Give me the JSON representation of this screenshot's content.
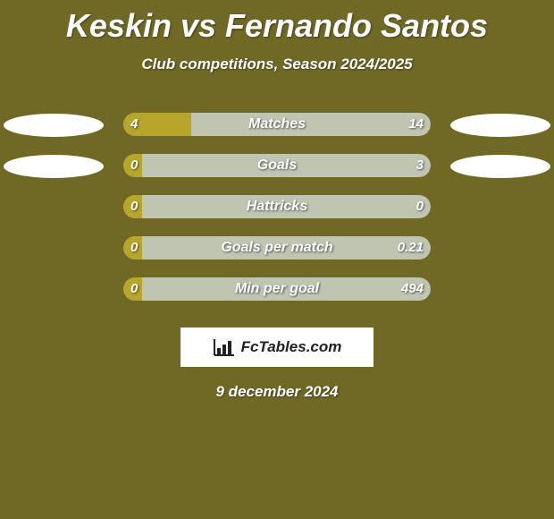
{
  "title": "Keskin vs Fernando Santos",
  "subtitle": "Club competitions, Season 2024/2025",
  "logo_text": "FcTables.com",
  "date": "9 december 2024",
  "background_color": "#706926",
  "text_color": "#ffffff",
  "ellipse_color": "#ffffff",
  "bar_track_width": 344,
  "bar_track_height": 26,
  "bar_radius": 14,
  "rows": [
    {
      "label": "Matches",
      "left_value": "4",
      "right_value": "14",
      "left_num": 4,
      "right_num": 14,
      "left_color": "#b8a62c",
      "right_color": "#c0c5b2",
      "left_pct": 22.2,
      "right_pct": 77.8,
      "show_left_ellipse": true,
      "show_right_ellipse": true
    },
    {
      "label": "Goals",
      "left_value": "0",
      "right_value": "3",
      "left_num": 0,
      "right_num": 3,
      "left_color": "#b8a62c",
      "right_color": "#c0c5b2",
      "left_pct": 6,
      "right_pct": 94,
      "show_left_ellipse": true,
      "show_right_ellipse": true
    },
    {
      "label": "Hattricks",
      "left_value": "0",
      "right_value": "0",
      "left_num": 0,
      "right_num": 0,
      "left_color": "#b8a62c",
      "right_color": "#c0c5b2",
      "left_pct": 6,
      "right_pct": 6,
      "neutral_fill": "#c0c5b2",
      "show_left_ellipse": false,
      "show_right_ellipse": false
    },
    {
      "label": "Goals per match",
      "left_value": "0",
      "right_value": "0.21",
      "left_num": 0,
      "right_num": 0.21,
      "left_color": "#b8a62c",
      "right_color": "#c0c5b2",
      "left_pct": 6,
      "right_pct": 94,
      "show_left_ellipse": false,
      "show_right_ellipse": false
    },
    {
      "label": "Min per goal",
      "left_value": "0",
      "right_value": "494",
      "left_num": 0,
      "right_num": 494,
      "left_color": "#b8a62c",
      "right_color": "#c0c5b2",
      "left_pct": 6,
      "right_pct": 94,
      "show_left_ellipse": false,
      "show_right_ellipse": false
    }
  ]
}
